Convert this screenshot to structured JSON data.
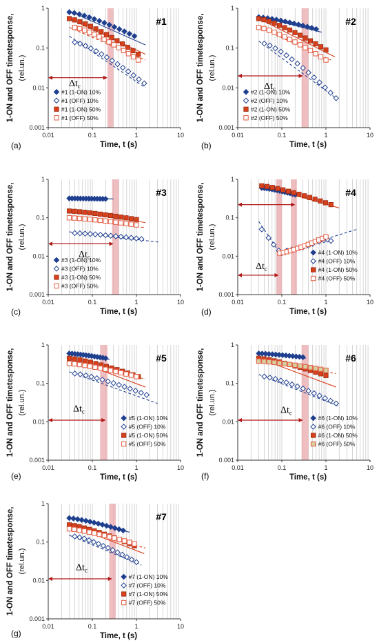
{
  "figure": {
    "y_axis_label": "1-ON and OFF timetesponse,",
    "y_axis_unit": "(rel.un.)",
    "x_axis_label": "Time, t (s)",
    "delta_label": "Δt",
    "delta_sub": "c",
    "colors": {
      "on10": "#1f3f8f",
      "off10": "#1f3f8f",
      "on50": "#d8401c",
      "off50": "#e25a40",
      "fit_blue": "#1f3f8f",
      "fit_red": "#d8401c",
      "band": "#e9a8ab",
      "arrow": "#b01818",
      "grid": "#c4c4c4"
    }
  },
  "chart_data": [
    {
      "type": "scatter",
      "panel": "(a)",
      "title": "#1",
      "xlabel": "Time, t (s)",
      "ylabel": "1-ON and OFF timetesponse, (rel.un.)",
      "xscale": "log",
      "yscale": "log",
      "xlim": [
        0.01,
        10
      ],
      "ylim": [
        0.001,
        1
      ],
      "x_ticks": [
        "0.01",
        "0.1",
        "1",
        "10"
      ],
      "y_ticks": [
        "0.001",
        "0.01",
        "0.1",
        "1"
      ],
      "band_x": [
        0.22,
        0.3
      ],
      "delta_tc": [
        0.01,
        0.22
      ],
      "legend_position": "lower-left",
      "series": [
        {
          "name": "#1 (1-ON) 10%",
          "style": "on10",
          "x0": 0.03,
          "x1": 0.9,
          "y0": 0.8,
          "y1": 0.2,
          "fit": [
            0.03,
            1.6,
            0.85,
            0.12
          ],
          "fit_dash": false
        },
        {
          "name": "#1 (OFF) 10%",
          "style": "off10",
          "x0": 0.04,
          "x1": 1.5,
          "y0": 0.14,
          "y1": 0.013,
          "fit": [
            0.03,
            1.6,
            0.2,
            0.01
          ],
          "fit_dash": true
        },
        {
          "name": "#1 (1-ON) 50%",
          "style": "on50",
          "x0": 0.03,
          "x1": 1.1,
          "y0": 0.55,
          "y1": 0.07,
          "fit": [
            0.03,
            1.6,
            0.55,
            0.07
          ],
          "fit_dash": false
        },
        {
          "name": "#1 (OFF) 50%",
          "style": "off50",
          "x0": 0.04,
          "x1": 1.1,
          "y0": 0.33,
          "y1": 0.05,
          "fit": [
            0.03,
            1.6,
            0.33,
            0.05
          ],
          "fit_dash": true
        }
      ]
    },
    {
      "type": "scatter",
      "panel": "(b)",
      "title": "#2",
      "xlabel": "Time, t (s)",
      "ylabel": "1-ON and OFF timetesponse, (rel.un.)",
      "xscale": "log",
      "yscale": "log",
      "xlim": [
        0.01,
        10
      ],
      "ylim": [
        0.001,
        1
      ],
      "x_ticks": [
        "0.01",
        "0.1",
        "1",
        "10"
      ],
      "y_ticks": [
        "0.001",
        "0.01",
        "0.1",
        "1"
      ],
      "band_x": [
        0.28,
        0.4
      ],
      "delta_tc": [
        0.01,
        0.3
      ],
      "legend_position": "lower-left",
      "series": [
        {
          "name": "#2 (1-ON) 10%",
          "style": "on10",
          "x0": 0.03,
          "x1": 0.6,
          "y0": 0.6,
          "y1": 0.3,
          "fit": [
            0.03,
            0.8,
            0.62,
            0.25
          ],
          "fit_dash": false
        },
        {
          "name": "#2 (OFF) 10%",
          "style": "off10",
          "x0": 0.04,
          "x1": 1.7,
          "y0": 0.13,
          "y1": 0.0055,
          "fit": [
            0.03,
            1.7,
            0.15,
            0.0055
          ],
          "fit_dash": true
        },
        {
          "name": "#2 (1-ON) 50%",
          "style": "on50",
          "x0": 0.03,
          "x1": 1.0,
          "y0": 0.55,
          "y1": 0.09,
          "fit": [
            0.03,
            1.6,
            0.55,
            0.06
          ],
          "fit_dash": false
        },
        {
          "name": "#2 (OFF) 50%",
          "style": "off50",
          "x0": 0.03,
          "x1": 1.0,
          "y0": 0.33,
          "y1": 0.05,
          "fit": [
            0.03,
            1.3,
            0.33,
            0.05
          ],
          "fit_dash": true
        }
      ]
    },
    {
      "type": "scatter",
      "panel": "(c)",
      "title": "#3",
      "xlabel": "Time, t (s)",
      "ylabel": "1-ON and OFF timetesponse, (rel.un.)",
      "xscale": "log",
      "yscale": "log",
      "xlim": [
        0.01,
        10
      ],
      "ylim": [
        0.001,
        1
      ],
      "x_ticks": [
        "0.01",
        "0.1",
        "1",
        "10"
      ],
      "y_ticks": [
        "0.001",
        "0.01",
        "0.1",
        "1"
      ],
      "band_x": [
        0.28,
        0.4
      ],
      "delta_tc": [
        0.01,
        0.3
      ],
      "legend_position": "lower-left",
      "series": [
        {
          "name": "#3 (1-ON) 10%",
          "style": "on10",
          "x0": 0.03,
          "x1": 0.2,
          "y0": 0.32,
          "y1": 0.31,
          "fit": [
            0.03,
            0.3,
            0.33,
            0.31
          ],
          "fit_dash": false
        },
        {
          "name": "#3 (OFF) 10%",
          "style": "off10",
          "x0": 0.04,
          "x1": 1.3,
          "y0": 0.04,
          "y1": 0.028,
          "fit": [
            0.03,
            3.5,
            0.043,
            0.023
          ],
          "fit_dash": true
        },
        {
          "name": "#3 (1-ON) 50%",
          "style": "on50",
          "x0": 0.03,
          "x1": 1.0,
          "y0": 0.15,
          "y1": 0.09,
          "fit": [
            0.03,
            1.6,
            0.15,
            0.075
          ],
          "fit_dash": false
        },
        {
          "name": "#3 (OFF) 50%",
          "style": "off50",
          "x0": 0.03,
          "x1": 1.0,
          "y0": 0.1,
          "y1": 0.065,
          "fit": [
            0.03,
            1.6,
            0.1,
            0.055
          ],
          "fit_dash": true
        }
      ]
    },
    {
      "type": "scatter",
      "panel": "(d)",
      "title": "#4",
      "xlabel": "Time, t (s)",
      "ylabel": "1-ON and OFF timetesponse, (rel.un.)",
      "xscale": "log",
      "yscale": "log",
      "xlim": [
        0.01,
        10
      ],
      "ylim": [
        0.001,
        1
      ],
      "x_ticks": [
        "0.01",
        "0.1",
        "1",
        "10"
      ],
      "y_ticks": [
        "0.001",
        "0.01",
        "0.1",
        "1"
      ],
      "band_x": [
        0.16,
        0.22
      ],
      "band2_x": [
        0.075,
        0.1
      ],
      "delta_tc": [
        0.01,
        0.2
      ],
      "delta_tc2": [
        0.01,
        0.085
      ],
      "legend_position": "lower-right",
      "series": [
        {
          "name": "#4 (1-ON) 10%",
          "style": "on10",
          "x0": 0.035,
          "x1": 0.2,
          "y0": 0.6,
          "y1": 0.4,
          "fit": [
            0.035,
            0.25,
            0.62,
            0.38
          ],
          "fit_dash": false
        },
        {
          "name": "#4 (OFF) 10%",
          "style": "off10",
          "x0": 0.035,
          "x1": 1.3,
          "y0": 0.05,
          "y1": 0.025,
          "fit": [
            0.03,
            0.09,
            0.08,
            0.012
          ],
          "fit2": [
            0.09,
            5,
            0.012,
            0.05
          ],
          "fit_dash": true
        },
        {
          "name": "#4 (1-ON) 50%",
          "style": "on50",
          "x0": 0.035,
          "x1": 1.3,
          "y0": 0.68,
          "y1": 0.22,
          "fit": [
            0.035,
            2,
            0.68,
            0.18
          ],
          "fit_dash": false
        },
        {
          "name": "#4 (OFF) 50%",
          "style": "off50",
          "x0": 0.09,
          "x1": 1.0,
          "y0": 0.012,
          "y1": 0.032,
          "fit": [
            0.09,
            1.0,
            0.012,
            0.032
          ],
          "fit_dash": true
        }
      ]
    },
    {
      "type": "scatter",
      "panel": "(e)",
      "title": "#5",
      "xlabel": "Time, t (s)",
      "ylabel": "1-ON and OFF timetesponse, (rel.un.)",
      "xscale": "log",
      "yscale": "log",
      "xlim": [
        0.01,
        10
      ],
      "ylim": [
        0.001,
        1
      ],
      "x_ticks": [
        "0.01",
        "0.1",
        "1",
        "10"
      ],
      "y_ticks": [
        "0.001",
        "0.01",
        "0.1",
        "1"
      ],
      "band_x": [
        0.15,
        0.22
      ],
      "delta_tc": [
        0.01,
        0.2
      ],
      "legend_position": "lower-right",
      "series": [
        {
          "name": "#5 (1-ON) 10%",
          "style": "on10",
          "x0": 0.03,
          "x1": 0.2,
          "y0": 0.6,
          "y1": 0.45,
          "fit": [
            0.03,
            0.25,
            0.62,
            0.42
          ],
          "fit_dash": false
        },
        {
          "name": "#5 (OFF) 10%",
          "style": "off10",
          "x0": 0.04,
          "x1": 1.7,
          "y0": 0.18,
          "y1": 0.05,
          "fit": [
            0.03,
            3,
            0.2,
            0.03
          ],
          "fit_dash": true
        },
        {
          "name": "#5 (1-ON) 50%",
          "style": "on50",
          "x0": 0.03,
          "x1": 1.1,
          "y0": 0.45,
          "y1": 0.15,
          "fit": [
            0.03,
            1.6,
            0.45,
            0.08
          ],
          "fit_dash": false
        },
        {
          "name": "#5 (OFF) 50%",
          "style": "off50",
          "x0": 0.03,
          "x1": 1.0,
          "y0": 0.33,
          "y1": 0.15,
          "fit": [
            0.03,
            1.6,
            0.33,
            0.13
          ],
          "fit_dash": true
        }
      ]
    },
    {
      "type": "scatter",
      "panel": "(f)",
      "title": "#6",
      "xlabel": "Time, t (s)",
      "ylabel": "1-ON and OFF timetesponse, (rel.un.)",
      "xscale": "log",
      "yscale": "log",
      "xlim": [
        0.01,
        10
      ],
      "ylim": [
        0.001,
        1
      ],
      "x_ticks": [
        "0.01",
        "0.1",
        "1",
        "10"
      ],
      "y_ticks": [
        "0.001",
        "0.01",
        "0.1",
        "1"
      ],
      "band_x": [
        0.28,
        0.4
      ],
      "delta_tc": [
        0.01,
        0.3
      ],
      "legend_position": "lower-right",
      "series": [
        {
          "name": "#6 (1-ON) 10%",
          "style": "on10",
          "x0": 0.03,
          "x1": 0.3,
          "y0": 0.6,
          "y1": 0.48,
          "fit": [
            0.03,
            0.35,
            0.62,
            0.45
          ],
          "fit_dash": false
        },
        {
          "name": "#6 (OFF) 10%",
          "style": "off10",
          "x0": 0.04,
          "x1": 1.7,
          "y0": 0.15,
          "y1": 0.03,
          "fit": [
            0.03,
            2,
            0.17,
            0.025
          ],
          "fit_dash": true
        },
        {
          "name": "#6 (1-ON) 50%",
          "style": "on50",
          "x0": 0.03,
          "x1": 1.0,
          "y0": 0.45,
          "y1": 0.16,
          "fit": [
            0.03,
            1.7,
            0.45,
            0.08
          ],
          "fit_dash": false
        },
        {
          "name": "#6 (OFF) 50%",
          "style": "off6",
          "x0": 0.03,
          "x1": 1.0,
          "y0": 0.38,
          "y1": 0.22,
          "fit": [
            0.03,
            1.7,
            0.38,
            0.18
          ],
          "fit_dash": true
        }
      ]
    },
    {
      "type": "scatter",
      "panel": "(g)",
      "title": "#7",
      "xlabel": "Time, t (s)",
      "ylabel": "1-ON and OFF timetesponse, (rel.un.)",
      "xscale": "log",
      "yscale": "log",
      "xlim": [
        0.01,
        10
      ],
      "ylim": [
        0.001,
        1
      ],
      "x_ticks": [
        "0.01",
        "0.1",
        "1",
        "10"
      ],
      "y_ticks": [
        "0.001",
        "0.01",
        "0.1",
        "1"
      ],
      "band_x": [
        0.24,
        0.34
      ],
      "delta_tc": [
        0.01,
        0.28
      ],
      "legend_position": "lower-right",
      "series": [
        {
          "name": "#7 (1-ON) 10%",
          "style": "on10",
          "x0": 0.03,
          "x1": 0.5,
          "y0": 0.42,
          "y1": 0.2,
          "fit": [
            0.03,
            0.7,
            0.44,
            0.18
          ],
          "fit_dash": false
        },
        {
          "name": "#7 (OFF) 10%",
          "style": "off10",
          "x0": 0.04,
          "x1": 1.0,
          "y0": 0.14,
          "y1": 0.03,
          "fit": [
            0.03,
            1.3,
            0.15,
            0.025
          ],
          "fit_dash": true
        },
        {
          "name": "#7 (1-ON) 50%",
          "style": "on50",
          "x0": 0.03,
          "x1": 0.9,
          "y0": 0.28,
          "y1": 0.08,
          "fit": [
            0.03,
            1.5,
            0.28,
            0.05
          ],
          "fit_dash": false
        },
        {
          "name": "#7 (OFF) 50%",
          "style": "off50",
          "x0": 0.03,
          "x1": 0.9,
          "y0": 0.22,
          "y1": 0.09,
          "fit": [
            0.03,
            1.6,
            0.22,
            0.07
          ],
          "fit_dash": true
        }
      ]
    }
  ]
}
